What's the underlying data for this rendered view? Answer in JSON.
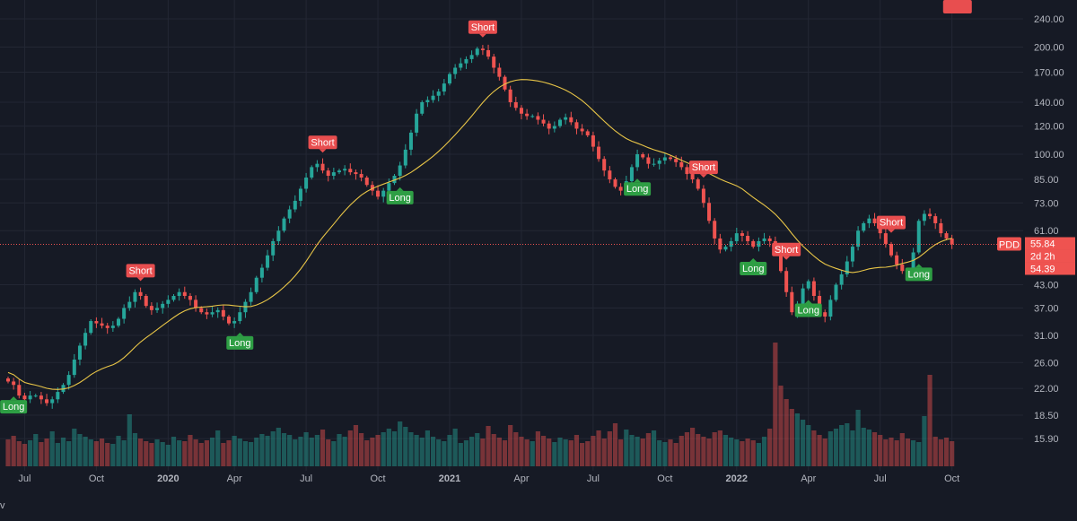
{
  "theme": {
    "background": "#161a25",
    "grid": "#232734",
    "text": "#b2b5be",
    "up": "#26a69a",
    "down": "#ef5350",
    "ma": "#e8c547",
    "long_label_bg": "#2e9e44",
    "short_label_bg": "#e84e4f"
  },
  "footer_glyph": "v",
  "chart_data": {
    "type": "candlestick",
    "symbol": "PDD",
    "scale": "log",
    "ylim": [
      14.5,
      250
    ],
    "y_ticks": [
      "240.00",
      "200.00",
      "170.00",
      "140.00",
      "120.00",
      "100.00",
      "85.00",
      "73.00",
      "61.00",
      "43.00",
      "37.00",
      "31.00",
      "26.00",
      "22.00",
      "18.50",
      "15.90"
    ],
    "x_ticks": [
      {
        "label": "Jul",
        "i": 3,
        "bold": false
      },
      {
        "label": "Oct",
        "i": 16,
        "bold": false
      },
      {
        "label": "2020",
        "i": 29,
        "bold": true
      },
      {
        "label": "Apr",
        "i": 41,
        "bold": false
      },
      {
        "label": "Jul",
        "i": 54,
        "bold": false
      },
      {
        "label": "Oct",
        "i": 67,
        "bold": false
      },
      {
        "label": "2021",
        "i": 80,
        "bold": true
      },
      {
        "label": "Apr",
        "i": 93,
        "bold": false
      },
      {
        "label": "Jul",
        "i": 106,
        "bold": false
      },
      {
        "label": "Oct",
        "i": 119,
        "bold": false
      },
      {
        "label": "2022",
        "i": 132,
        "bold": true
      },
      {
        "label": "Apr",
        "i": 145,
        "bold": false
      },
      {
        "label": "Jul",
        "i": 158,
        "bold": false
      },
      {
        "label": "Oct",
        "i": 171,
        "bold": false
      }
    ],
    "price_labels": [
      {
        "text": "55.84",
        "value": 55.84
      },
      {
        "text": "2d 2h",
        "value": 55.1
      },
      {
        "text": "54.39",
        "value": 54.39
      }
    ],
    "symbol_tag_value": 55.84,
    "closes": [
      23.0,
      22.5,
      21.0,
      20.5,
      21.0,
      21.0,
      20.5,
      20.0,
      20.5,
      21.5,
      22.5,
      24.0,
      26.5,
      29.0,
      31.5,
      34.0,
      33.5,
      33.0,
      32.5,
      33.0,
      34.5,
      37.0,
      38.5,
      41.0,
      40.0,
      37.5,
      36.5,
      37.0,
      38.0,
      39.0,
      40.0,
      41.0,
      40.0,
      39.0,
      37.0,
      36.0,
      35.5,
      36.0,
      36.5,
      35.0,
      33.5,
      34.0,
      36.0,
      38.5,
      41.0,
      45.0,
      48.0,
      52.0,
      57.0,
      61.0,
      66.0,
      70.0,
      74.0,
      80.0,
      86.0,
      92.0,
      94.0,
      90.0,
      87.0,
      89.0,
      90.0,
      91.0,
      89.0,
      88.0,
      86.0,
      82.0,
      79.0,
      76.0,
      79.0,
      83.0,
      87.0,
      93.0,
      103.0,
      115.0,
      130.0,
      140.0,
      142.0,
      146.0,
      150.0,
      158.0,
      168.0,
      175.0,
      180.0,
      185.0,
      190.0,
      198.0,
      196.0,
      188.0,
      175.0,
      165.0,
      152.0,
      140.0,
      135.0,
      130.0,
      128.0,
      128.0,
      125.0,
      122.0,
      118.0,
      120.0,
      125.0,
      127.0,
      123.0,
      118.0,
      116.0,
      113.0,
      105.0,
      97.0,
      90.0,
      85.0,
      81.0,
      79.0,
      84.0,
      92.0,
      100.0,
      98.0,
      94.0,
      94.0,
      96.0,
      98.0,
      97.0,
      95.0,
      92.0,
      88.0,
      85.0,
      80.0,
      73.0,
      65.0,
      58.0,
      54.0,
      55.0,
      57.0,
      60.0,
      59.0,
      57.0,
      55.0,
      57.0,
      58.0,
      57.0,
      55.0,
      47.0,
      41.0,
      36.0,
      38.0,
      42.0,
      44.0,
      40.0,
      36.0,
      35.0,
      39.0,
      43.0,
      46.0,
      50.0,
      55.0,
      61.0,
      64.0,
      66.0,
      64.0,
      60.0,
      56.0,
      52.0,
      49.0,
      47.0,
      46.5,
      53.0,
      65.0,
      68.0,
      67.0,
      64.0,
      60.0,
      58.0,
      55.84
    ],
    "volumes": [
      3.0,
      3.4,
      2.8,
      2.5,
      2.9,
      3.6,
      2.7,
      3.1,
      3.9,
      2.6,
      3.2,
      2.8,
      4.2,
      3.6,
      3.3,
      3.0,
      2.8,
      3.1,
      2.6,
      2.5,
      3.4,
      2.9,
      5.8,
      3.7,
      3.1,
      2.8,
      2.6,
      3.0,
      2.7,
      2.4,
      3.3,
      2.9,
      2.8,
      3.5,
      3.0,
      2.6,
      2.9,
      3.2,
      4.0,
      2.6,
      2.9,
      3.4,
      3.1,
      2.8,
      2.7,
      3.2,
      3.6,
      3.4,
      3.9,
      4.3,
      3.7,
      3.5,
      3.0,
      3.3,
      3.8,
      3.2,
      3.5,
      4.1,
      3.0,
      2.8,
      3.6,
      3.3,
      4.0,
      4.6,
      3.7,
      2.9,
      3.2,
      3.5,
      3.8,
      4.2,
      3.9,
      5.0,
      4.4,
      3.8,
      3.5,
      3.2,
      4.0,
      3.3,
      3.0,
      2.8,
      3.5,
      4.2,
      2.6,
      2.9,
      3.3,
      3.7,
      3.1,
      4.5,
      3.6,
      3.2,
      2.9,
      4.6,
      3.8,
      3.3,
      3.0,
      2.8,
      3.9,
      3.4,
      3.1,
      2.7,
      3.2,
      3.0,
      2.9,
      3.5,
      2.6,
      2.8,
      3.4,
      4.0,
      3.1,
      3.9,
      4.8,
      3.0,
      4.1,
      3.5,
      3.3,
      3.1,
      3.7,
      4.0,
      2.9,
      2.7,
      3.0,
      2.6,
      3.4,
      3.8,
      4.3,
      3.6,
      3.3,
      3.1,
      3.8,
      4.0,
      3.5,
      3.2,
      3.0,
      2.8,
      3.1,
      2.9,
      2.6,
      3.3,
      4.2,
      13.8,
      9.0,
      7.5,
      6.4,
      5.9,
      5.2,
      4.6,
      4.0,
      3.5,
      3.1,
      3.9,
      4.2,
      4.6,
      4.8,
      4.0,
      6.3,
      4.3,
      4.1,
      3.8,
      3.5,
      3.0,
      3.2,
      2.9,
      3.7,
      3.1,
      2.9,
      2.7,
      5.6,
      10.2,
      3.3,
      3.0,
      3.2,
      2.8,
      3.4,
      3.1
    ]
  },
  "signals": [
    {
      "type": "long",
      "text": "Long",
      "i": 1,
      "at": "low"
    },
    {
      "type": "short",
      "text": "Short",
      "i": 24,
      "at": "high"
    },
    {
      "type": "long",
      "text": "Long",
      "i": 42,
      "at": "low"
    },
    {
      "type": "short",
      "text": "Short",
      "i": 57,
      "at": "high"
    },
    {
      "type": "long",
      "text": "Long",
      "i": 71,
      "at": "low"
    },
    {
      "type": "short",
      "text": "Short",
      "i": 86,
      "at": "high"
    },
    {
      "type": "long",
      "text": "Long",
      "i": 114,
      "at": "low"
    },
    {
      "type": "short",
      "text": "Short",
      "i": 126,
      "at": "high"
    },
    {
      "type": "long",
      "text": "Long",
      "i": 135,
      "at": "low"
    },
    {
      "type": "short",
      "text": "Short",
      "i": 141,
      "at": "high"
    },
    {
      "type": "long",
      "text": "Long",
      "i": 145,
      "at": "low"
    },
    {
      "type": "short",
      "text": "Short",
      "i": 160,
      "at": "high"
    },
    {
      "type": "long",
      "text": "Long",
      "i": 165,
      "at": "low"
    },
    {
      "type": "short",
      "text": "Short",
      "i": 172,
      "at": "high"
    }
  ]
}
